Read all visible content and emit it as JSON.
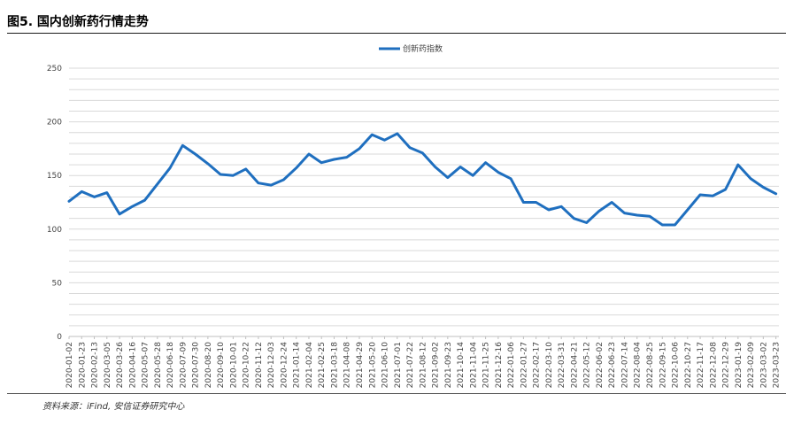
{
  "header": {
    "figure_title": "图5. 国内创新药行情走势"
  },
  "footer": {
    "source": "资料来源：iFind, 安信证券研究中心"
  },
  "colors": {
    "series": "#1f6fbf",
    "grid": "#d9d9d9",
    "axis": "#bfbfbf"
  },
  "chart_data": {
    "type": "line",
    "title": "",
    "xlabel": "",
    "ylabel": "",
    "ylim": [
      0,
      250
    ],
    "grid": true,
    "legend_position": "top-center",
    "y_ticks": [
      0,
      50,
      100,
      150,
      200,
      250
    ],
    "x_tick_labels": [
      "2020-01-02",
      "2020-01-23",
      "2020-02-13",
      "2020-03-05",
      "2020-03-26",
      "2020-04-16",
      "2020-05-07",
      "2020-05-28",
      "2020-06-18",
      "2020-07-09",
      "2020-07-30",
      "2020-08-20",
      "2020-09-10",
      "2020-10-01",
      "2020-10-22",
      "2020-11-12",
      "2020-12-03",
      "2020-12-24",
      "2021-01-14",
      "2021-02-04",
      "2021-02-25",
      "2021-03-18",
      "2021-04-08",
      "2021-04-29",
      "2021-05-20",
      "2021-06-10",
      "2021-07-01",
      "2021-07-22",
      "2021-08-12",
      "2021-09-02",
      "2021-09-23",
      "2021-10-14",
      "2021-11-04",
      "2021-11-25",
      "2021-12-16",
      "2022-01-06",
      "2022-01-27",
      "2022-02-17",
      "2022-03-10",
      "2022-03-31",
      "2022-04-21",
      "2022-05-12",
      "2022-06-02",
      "2022-06-23",
      "2022-07-14",
      "2022-08-04",
      "2022-08-25",
      "2022-09-15",
      "2022-10-06",
      "2022-10-27",
      "2022-11-17",
      "2022-12-08",
      "2022-12-29",
      "2023-01-19",
      "2023-02-09",
      "2023-03-02",
      "2023-03-23"
    ],
    "series": [
      {
        "name": "创新药指数",
        "x": [
          "2020-01-02",
          "2020-01-23",
          "2020-02-13",
          "2020-03-05",
          "2020-03-26",
          "2020-04-16",
          "2020-05-07",
          "2020-05-28",
          "2020-06-18",
          "2020-07-09",
          "2020-07-30",
          "2020-08-20",
          "2020-09-10",
          "2020-10-01",
          "2020-10-22",
          "2020-11-12",
          "2020-12-03",
          "2020-12-24",
          "2021-01-14",
          "2021-02-04",
          "2021-02-25",
          "2021-03-18",
          "2021-04-08",
          "2021-04-29",
          "2021-05-20",
          "2021-06-10",
          "2021-07-01",
          "2021-07-22",
          "2021-08-12",
          "2021-09-02",
          "2021-09-23",
          "2021-10-14",
          "2021-11-04",
          "2021-11-25",
          "2021-12-16",
          "2022-01-06",
          "2022-01-27",
          "2022-02-17",
          "2022-03-10",
          "2022-03-31",
          "2022-04-21",
          "2022-05-12",
          "2022-06-02",
          "2022-06-23",
          "2022-07-14",
          "2022-08-04",
          "2022-08-25",
          "2022-09-15",
          "2022-10-06",
          "2022-10-27",
          "2022-11-17",
          "2022-12-08",
          "2022-12-29",
          "2023-01-19",
          "2023-02-09",
          "2023-03-02",
          "2023-03-23"
        ],
        "values": [
          126,
          135,
          130,
          134,
          114,
          121,
          127,
          142,
          157,
          178,
          170,
          161,
          151,
          150,
          156,
          143,
          141,
          146,
          157,
          170,
          162,
          165,
          167,
          175,
          188,
          183,
          189,
          176,
          171,
          158,
          148,
          158,
          150,
          162,
          153,
          147,
          125,
          125,
          118,
          121,
          110,
          106,
          117,
          125,
          115,
          113,
          112,
          104,
          104,
          118,
          132,
          131,
          137,
          160,
          147,
          139,
          133
        ]
      }
    ]
  }
}
